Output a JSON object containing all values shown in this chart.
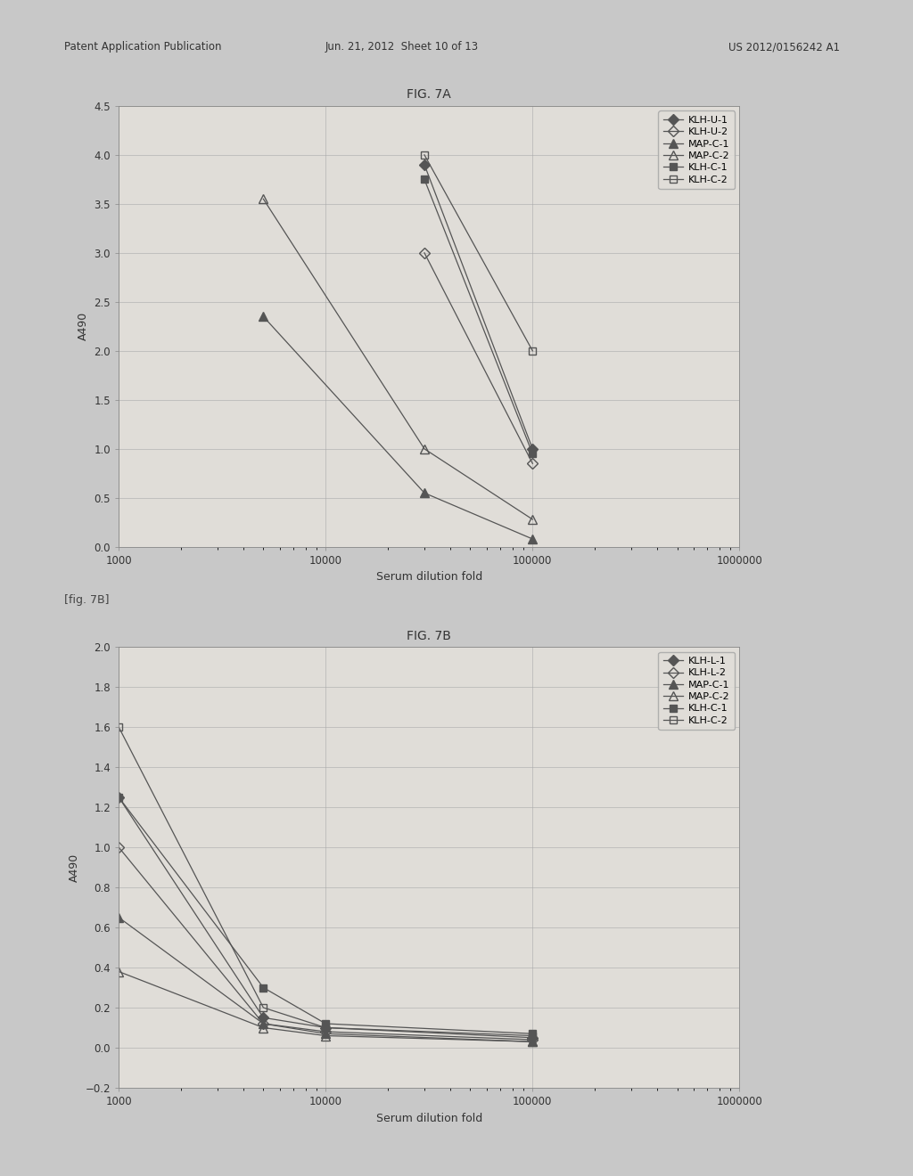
{
  "fig7A": {
    "title": "FIG. 7A",
    "xlabel": "Serum dilution fold",
    "ylabel": "A490",
    "ylim": [
      0,
      4.5
    ],
    "yticks": [
      0,
      0.5,
      1.0,
      1.5,
      2.0,
      2.5,
      3.0,
      3.5,
      4.0,
      4.5
    ],
    "xlim": [
      1000,
      1000000
    ],
    "xticks": [
      1000,
      10000,
      100000,
      1000000
    ],
    "series": [
      {
        "label": "KLH-U-1",
        "x": [
          30000,
          100000
        ],
        "y": [
          3.9,
          1.0
        ],
        "marker": "D",
        "fillstyle": "full",
        "color": "#555555",
        "markersize": 6
      },
      {
        "label": "KLH-U-2",
        "x": [
          30000,
          100000
        ],
        "y": [
          3.0,
          0.85
        ],
        "marker": "D",
        "fillstyle": "none",
        "color": "#555555",
        "markersize": 6
      },
      {
        "label": "MAP-C-1",
        "x": [
          5000,
          30000,
          100000
        ],
        "y": [
          2.35,
          0.55,
          0.08
        ],
        "marker": "^",
        "fillstyle": "full",
        "color": "#555555",
        "markersize": 7
      },
      {
        "label": "MAP-C-2",
        "x": [
          5000,
          30000,
          100000
        ],
        "y": [
          3.55,
          1.0,
          0.28
        ],
        "marker": "^",
        "fillstyle": "none",
        "color": "#555555",
        "markersize": 7
      },
      {
        "label": "KLH-C-1",
        "x": [
          30000,
          100000
        ],
        "y": [
          3.75,
          0.95
        ],
        "marker": "s",
        "fillstyle": "full",
        "color": "#555555",
        "markersize": 6
      },
      {
        "label": "KLH-C-2",
        "x": [
          30000,
          100000
        ],
        "y": [
          4.0,
          2.0
        ],
        "marker": "s",
        "fillstyle": "none",
        "color": "#555555",
        "markersize": 6
      }
    ]
  },
  "fig7B": {
    "title": "FIG. 7B",
    "xlabel": "Serum dilution fold",
    "ylabel": "A490",
    "ylim": [
      -0.2,
      2.0
    ],
    "yticks": [
      -0.2,
      0,
      0.2,
      0.4,
      0.6,
      0.8,
      1.0,
      1.2,
      1.4,
      1.6,
      1.8,
      2.0
    ],
    "xlim": [
      1000,
      1000000
    ],
    "xticks": [
      1000,
      10000,
      100000,
      1000000
    ],
    "series": [
      {
        "label": "KLH-L-1",
        "x": [
          1000,
          5000,
          10000,
          100000
        ],
        "y": [
          1.25,
          0.15,
          0.1,
          0.05
        ],
        "marker": "D",
        "fillstyle": "full",
        "color": "#555555",
        "markersize": 6
      },
      {
        "label": "KLH-L-2",
        "x": [
          1000,
          5000,
          10000,
          100000
        ],
        "y": [
          1.0,
          0.12,
          0.08,
          0.04
        ],
        "marker": "D",
        "fillstyle": "none",
        "color": "#555555",
        "markersize": 6
      },
      {
        "label": "MAP-C-1",
        "x": [
          1000,
          5000,
          10000,
          100000
        ],
        "y": [
          0.65,
          0.12,
          0.07,
          0.03
        ],
        "marker": "^",
        "fillstyle": "full",
        "color": "#555555",
        "markersize": 7
      },
      {
        "label": "MAP-C-2",
        "x": [
          1000,
          5000,
          10000,
          100000
        ],
        "y": [
          0.38,
          0.1,
          0.06,
          0.03
        ],
        "marker": "^",
        "fillstyle": "none",
        "color": "#555555",
        "markersize": 7
      },
      {
        "label": "KLH-C-1",
        "x": [
          1000,
          5000,
          10000,
          100000
        ],
        "y": [
          1.25,
          0.3,
          0.12,
          0.07
        ],
        "marker": "s",
        "fillstyle": "full",
        "color": "#555555",
        "markersize": 6
      },
      {
        "label": "KLH-C-2",
        "x": [
          1000,
          5000,
          10000,
          100000
        ],
        "y": [
          1.6,
          0.2,
          0.1,
          0.06
        ],
        "marker": "s",
        "fillstyle": "none",
        "color": "#555555",
        "markersize": 6
      }
    ]
  },
  "header_left": "Patent Application Publication",
  "header_mid": "Jun. 21, 2012  Sheet 10 of 13",
  "header_right": "US 2012/0156242 A1",
  "fig7B_label": "[fig. 7B]",
  "background_color": "#c8c8c8",
  "page_color": "#d8d4cc",
  "plot_bg_color": "#e0ddd8"
}
